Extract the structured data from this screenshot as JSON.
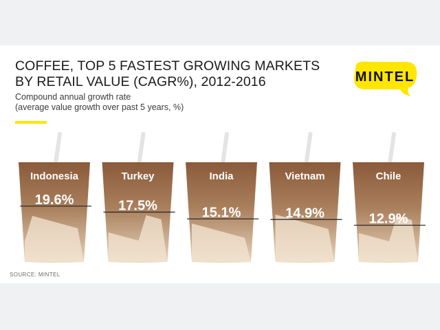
{
  "header": {
    "title_line1": "COFFEE, TOP 5 FASTEST GROWING MARKETS",
    "title_line2": "BY RETAIL VALUE (CAGR%), 2012-2016",
    "subtitle_line1": "Compound annual growth rate",
    "subtitle_line2": "(average value growth over past 5 years, %)"
  },
  "brand": {
    "name": "MINTEL",
    "accent_color": "#ffe600"
  },
  "source": "SOURCE: MINTEL",
  "colors": {
    "cup_top": "#8a5a3a",
    "cup_mid": "#a97f5c",
    "cup_bottom": "#e6d3bb",
    "foam": "#f3e6d3",
    "straw": "#e4e4e4",
    "text": "#ffffff",
    "marker_line": "#222222"
  },
  "chart_data": {
    "type": "bar",
    "categories": [
      "Indonesia",
      "Turkey",
      "India",
      "Vietnam",
      "Chile"
    ],
    "values": [
      19.6,
      17.5,
      15.1,
      14.9,
      12.9
    ],
    "value_labels": [
      "19.6%",
      "17.5%",
      "15.1%",
      "14.9%",
      "12.9%"
    ],
    "unit": "%",
    "ylim": [
      0,
      35
    ]
  }
}
